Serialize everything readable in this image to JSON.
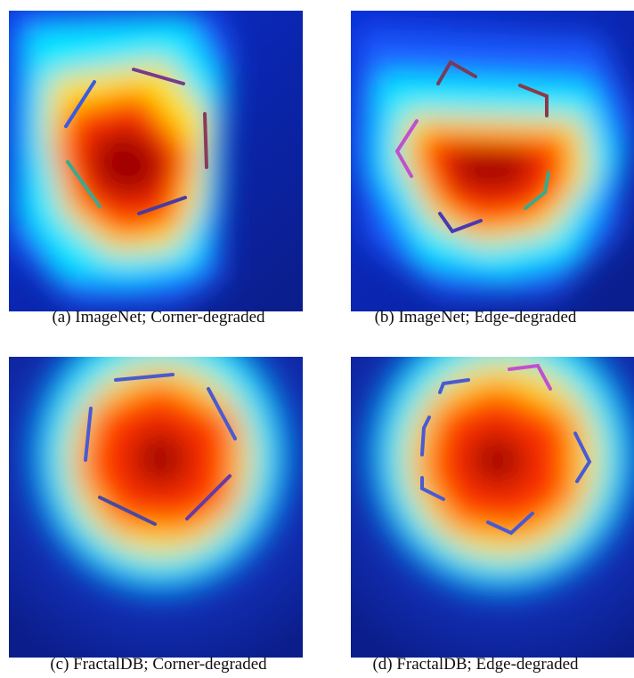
{
  "figure": {
    "panels": [
      {
        "id": "a",
        "caption": "(a) ImageNet; Corner-degraded"
      },
      {
        "id": "b",
        "caption": "(b) ImageNet; Edge-degraded"
      },
      {
        "id": "c",
        "caption": "(c) FractalDB; Corner-degraded"
      },
      {
        "id": "d",
        "caption": "(d) FractalDB; Edge-degraded"
      }
    ]
  },
  "colors": {
    "heat_core": "#8b0000",
    "heat_hot": "#ff2a00",
    "heat_warm": "#ffd800",
    "heat_mid": "#00ffff",
    "heat_cool": "#0a3cf0",
    "heat_background": "#0d1f9a"
  }
}
